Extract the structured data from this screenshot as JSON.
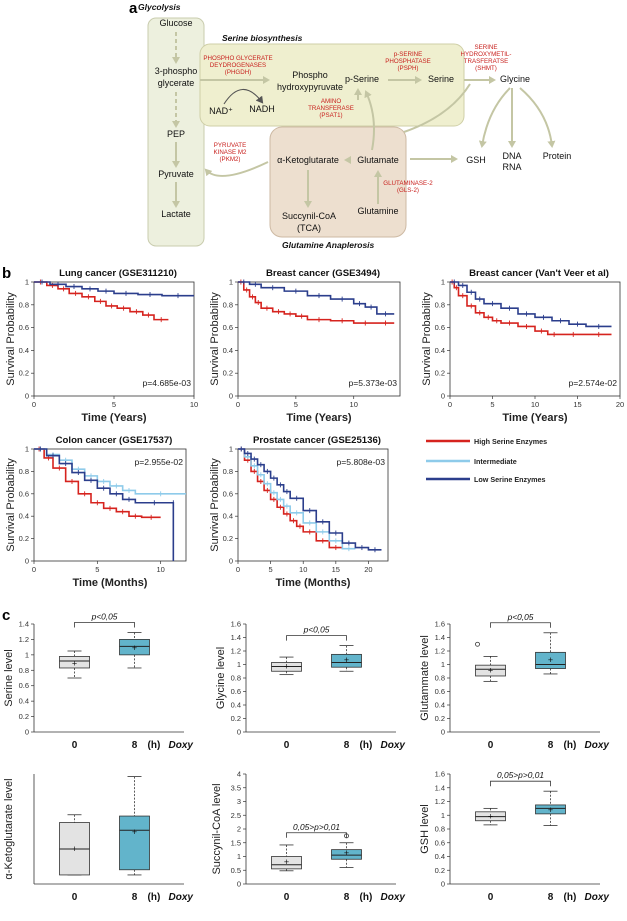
{
  "panel_labels": {
    "a": "a",
    "b": "b",
    "c": "c"
  },
  "colors": {
    "high": "#d6231e",
    "intermediate": "#8ecbea",
    "low": "#2b3e8c",
    "box_control": "#e3e3e3",
    "box_treated": "#62b4cb",
    "glycolysis_fill": "#edf0de",
    "serine_fill": "#efefcf",
    "glutamine_fill": "#eddfcf",
    "arrow": "#c4c6a4",
    "enzyme_text": "#c8201d"
  },
  "pathway": {
    "glycolysis_title": "Glycolysis",
    "serine_title": "Serine biosynthesis",
    "glutamine_title": "Glutamine Anaplerosis",
    "metabolites": {
      "glucose": "Glucose",
      "phosphoglycerate_1": "3-phospho",
      "phosphoglycerate_2": "glycerate",
      "pep": "PEP",
      "pyruvate": "Pyruvate",
      "lactate": "Lactate",
      "phosphohydroxypyruvate_1": "Phospho",
      "phosphohydroxypyruvate_2": "hydroxypyruvate",
      "nad": "NAD⁺",
      "nadh": "NADH",
      "pserine": "p-Serine",
      "serine": "Serine",
      "glycine": "Glycine",
      "gsh": "GSH",
      "dna": "DNA",
      "rna": "RNA",
      "protein": "Protein",
      "akg": "α-Ketoglutarate",
      "glutamate": "Glutamate",
      "glutamine": "Glutamine",
      "succinyl_1": "Succynil-CoA",
      "succinyl_2": "(TCA)"
    },
    "enzymes": {
      "phgdh_1": "PHOSPHO GLYCERATE",
      "phgdh_2": "DEYDROGENASES",
      "phgdh_3": "(PHGDH)",
      "psph_1": "p-SERINE",
      "psph_2": "PHOSPHATASE",
      "psph_3": "(PSPH)",
      "shmt_1": "SERINE",
      "shmt_2": "HYDROXYMETIL-",
      "shmt_3": "TRASFERATSE",
      "shmt_4": "(SHMT)",
      "psat1_1": "AMINO",
      "psat1_2": "TRANSFERASE",
      "psat1_3": "(PSAT1)",
      "pkm2_1": "PYRUVATE",
      "pkm2_2": "KINASE M2",
      "pkm2_3": "(PKM2)",
      "gls2_1": "GLUTAMINASE-2",
      "gls2_2": "(GLS-2)"
    }
  },
  "survival": {
    "legend": [
      "High Serine Enzymes",
      "Intermediate",
      "Low Serine Enzymes"
    ],
    "y_label": "Survival Probability"
  },
  "boxplots": {
    "x_labels": [
      "0",
      "8"
    ],
    "x_unit": "(h)",
    "x_treatment": "Doxy"
  },
  "chart_data": [
    {
      "type": "line",
      "title": "Lung cancer (GSE311210)",
      "xlabel": "Time (Years)",
      "ylabel": "Survival Probability",
      "xlim": [
        0,
        10
      ],
      "ylim": [
        0,
        1
      ],
      "xticks": [
        0,
        5,
        10
      ],
      "yticks": [
        0,
        0.2,
        0.4,
        0.6,
        0.8,
        1
      ],
      "pvalue": "p=4.685e-03",
      "series": [
        {
          "name": "High Serine Enzymes",
          "x": [
            0,
            0.8,
            1.5,
            2.2,
            3.0,
            3.8,
            4.5,
            5.2,
            6.0,
            6.8,
            7.5,
            8.4
          ],
          "y": [
            1.0,
            0.97,
            0.94,
            0.9,
            0.87,
            0.83,
            0.79,
            0.77,
            0.74,
            0.71,
            0.67,
            0.67
          ]
        },
        {
          "name": "Low Serine Enzymes",
          "x": [
            0,
            1.0,
            2.0,
            3.0,
            4.0,
            5.0,
            6.5,
            8.0,
            10.0
          ],
          "y": [
            1.0,
            0.98,
            0.96,
            0.94,
            0.92,
            0.9,
            0.89,
            0.88,
            0.88
          ]
        }
      ]
    },
    {
      "type": "line",
      "title": "Breast cancer (GSE3494)",
      "xlabel": "Time (Years)",
      "ylabel": "Survival Probability",
      "xlim": [
        0,
        14
      ],
      "ylim": [
        0,
        1
      ],
      "xticks": [
        0,
        5,
        10
      ],
      "yticks": [
        0,
        0.2,
        0.4,
        0.6,
        0.8,
        1
      ],
      "pvalue": "p=5.373e-03",
      "series": [
        {
          "name": "High Serine Enzymes",
          "x": [
            0,
            0.5,
            1.0,
            1.5,
            2.0,
            3.0,
            4.0,
            5.0,
            6.0,
            8.0,
            10.0,
            12.0,
            13.5
          ],
          "y": [
            1.0,
            0.93,
            0.87,
            0.82,
            0.77,
            0.74,
            0.72,
            0.7,
            0.67,
            0.66,
            0.64,
            0.64,
            0.64
          ]
        },
        {
          "name": "Low Serine Enzymes",
          "x": [
            0,
            1.0,
            2.0,
            4.0,
            6.0,
            8.0,
            10.0,
            11.0,
            12.0,
            13.5
          ],
          "y": [
            1.0,
            0.98,
            0.95,
            0.92,
            0.88,
            0.85,
            0.81,
            0.78,
            0.72,
            0.72
          ]
        }
      ]
    },
    {
      "type": "line",
      "title": "Breast cancer (Van't Veer et al)",
      "xlabel": "Time (Years)",
      "ylabel": "Survival Probability",
      "xlim": [
        0,
        20
      ],
      "ylim": [
        0,
        1
      ],
      "xticks": [
        0,
        5,
        10,
        15,
        20
      ],
      "yticks": [
        0,
        0.2,
        0.4,
        0.6,
        0.8,
        1
      ],
      "pvalue": "p=2.574e-02",
      "series": [
        {
          "name": "High Serine Enzymes",
          "x": [
            0,
            0.5,
            1.0,
            2.0,
            3.0,
            4.0,
            5.0,
            6.0,
            8.0,
            10.0,
            11.5,
            13.0,
            16.0,
            19.0
          ],
          "y": [
            1.0,
            0.95,
            0.88,
            0.79,
            0.73,
            0.69,
            0.66,
            0.64,
            0.61,
            0.57,
            0.54,
            0.54,
            0.54,
            0.54
          ]
        },
        {
          "name": "Low Serine Enzymes",
          "x": [
            0,
            1.0,
            2.0,
            3.0,
            4.0,
            6.0,
            8.0,
            10.0,
            12.0,
            14.0,
            16.0,
            19.0
          ],
          "y": [
            1.0,
            0.97,
            0.91,
            0.85,
            0.81,
            0.77,
            0.72,
            0.69,
            0.66,
            0.63,
            0.61,
            0.61
          ]
        }
      ]
    },
    {
      "type": "line",
      "title": "Colon cancer (GSE17537)",
      "xlabel": "Time (Months)",
      "ylabel": "Survival Probability",
      "xlim": [
        0,
        12
      ],
      "ylim": [
        0,
        1
      ],
      "xticks": [
        0,
        5,
        10
      ],
      "yticks": [
        0,
        0.2,
        0.4,
        0.6,
        0.8,
        1
      ],
      "pvalue": "p=2.955e-02",
      "series": [
        {
          "name": "High Serine Enzymes",
          "x": [
            0,
            0.8,
            1.5,
            2.5,
            3.5,
            4.5,
            5.5,
            6.5,
            7.5,
            8.5,
            10.0
          ],
          "y": [
            1.0,
            0.92,
            0.83,
            0.71,
            0.6,
            0.52,
            0.47,
            0.44,
            0.4,
            0.39,
            0.39
          ]
        },
        {
          "name": "Intermediate",
          "x": [
            0,
            1.0,
            2.0,
            3.0,
            4.0,
            5.0,
            6.0,
            7.0,
            8.0,
            12.0
          ],
          "y": [
            1.0,
            0.95,
            0.9,
            0.82,
            0.76,
            0.71,
            0.67,
            0.63,
            0.6,
            0.6
          ]
        },
        {
          "name": "Low Serine Enzymes",
          "x": [
            0,
            1.0,
            2.0,
            3.0,
            4.0,
            5.0,
            6.0,
            7.0,
            8.0,
            11.0,
            11.0
          ],
          "y": [
            1.0,
            0.94,
            0.87,
            0.79,
            0.72,
            0.65,
            0.6,
            0.55,
            0.52,
            0.52,
            0.0
          ]
        }
      ]
    },
    {
      "type": "line",
      "title": "Prostate cancer (GSE25136)",
      "xlabel": "Time (Months)",
      "ylabel": "Survival Probability",
      "xlim": [
        0,
        23
      ],
      "ylim": [
        0,
        1
      ],
      "xticks": [
        0,
        5,
        10,
        15,
        20
      ],
      "yticks": [
        0,
        0.2,
        0.4,
        0.6,
        0.8,
        1
      ],
      "pvalue": "p=5.808e-03",
      "series": [
        {
          "name": "High Serine Enzymes",
          "x": [
            0,
            1,
            2,
            3,
            4,
            5,
            6,
            7,
            8,
            9,
            10,
            12,
            14,
            16
          ],
          "y": [
            1.0,
            0.9,
            0.8,
            0.71,
            0.63,
            0.55,
            0.48,
            0.42,
            0.36,
            0.31,
            0.26,
            0.18,
            0.12,
            0.12
          ]
        },
        {
          "name": "Intermediate",
          "x": [
            0,
            1,
            2,
            3,
            4,
            5,
            6,
            7,
            8,
            10,
            12,
            14,
            16,
            18
          ],
          "y": [
            1.0,
            0.93,
            0.85,
            0.77,
            0.69,
            0.61,
            0.55,
            0.49,
            0.43,
            0.34,
            0.26,
            0.18,
            0.11,
            0.11
          ]
        },
        {
          "name": "Low Serine Enzymes",
          "x": [
            0,
            1,
            2,
            3,
            4,
            5,
            6,
            7,
            8,
            10,
            12,
            14,
            16,
            18,
            20,
            22
          ],
          "y": [
            1.0,
            0.96,
            0.91,
            0.86,
            0.8,
            0.74,
            0.68,
            0.62,
            0.56,
            0.45,
            0.35,
            0.25,
            0.16,
            0.12,
            0.1,
            0.1
          ]
        }
      ]
    },
    {
      "type": "box",
      "ylabel": "Serine level",
      "ylim": [
        0,
        1.4
      ],
      "yticks": [
        0,
        0.2,
        0.4,
        0.6,
        0.8,
        1,
        1.2,
        1.4
      ],
      "categories": [
        "0",
        "8"
      ],
      "significance": "p<0,05",
      "boxes": [
        {
          "category": "0",
          "min": 0.7,
          "q1": 0.83,
          "median": 0.92,
          "q3": 0.98,
          "max": 1.05,
          "mean": 0.89
        },
        {
          "category": "8",
          "min": 0.83,
          "q1": 1.0,
          "median": 1.11,
          "q3": 1.2,
          "max": 1.29,
          "mean": 1.09
        }
      ]
    },
    {
      "type": "box",
      "ylabel": "Glycine level",
      "ylim": [
        0,
        1.6
      ],
      "yticks": [
        0,
        0.2,
        0.4,
        0.6,
        0.8,
        1,
        1.2,
        1.4,
        1.6
      ],
      "categories": [
        "0",
        "8"
      ],
      "significance": "p<0,05",
      "boxes": [
        {
          "category": "0",
          "min": 0.85,
          "q1": 0.9,
          "median": 0.97,
          "q3": 1.03,
          "max": 1.11,
          "mean": 0.97
        },
        {
          "category": "8",
          "min": 0.9,
          "q1": 0.96,
          "median": 1.03,
          "q3": 1.15,
          "max": 1.28,
          "mean": 1.07
        }
      ]
    },
    {
      "type": "box",
      "ylabel": "Glutammate level",
      "ylim": [
        0,
        1.6
      ],
      "yticks": [
        0,
        0.2,
        0.4,
        0.6,
        0.8,
        1,
        1.2,
        1.4,
        1.6
      ],
      "categories": [
        "0",
        "8"
      ],
      "significance": "p<0,05",
      "boxes": [
        {
          "category": "0",
          "min": 0.75,
          "q1": 0.83,
          "median": 0.93,
          "q3": 0.99,
          "max": 1.12,
          "mean": 0.91,
          "outliers": [
            1.3
          ]
        },
        {
          "category": "8",
          "min": 0.86,
          "q1": 0.94,
          "median": 1.0,
          "q3": 1.18,
          "max": 1.47,
          "mean": 1.07
        }
      ]
    },
    {
      "type": "box",
      "ylabel": "α-Ketoglutarate level",
      "ylim": [
        0.2,
        1.9
      ],
      "yticks": [],
      "categories": [
        "0",
        "8"
      ],
      "significance": "",
      "boxes": [
        {
          "category": "0",
          "min": 0.34,
          "q1": 0.34,
          "median": 0.74,
          "q3": 1.15,
          "max": 1.27,
          "mean": 0.74
        },
        {
          "category": "8",
          "min": 0.34,
          "q1": 0.42,
          "median": 1.03,
          "q3": 1.25,
          "max": 1.86,
          "mean": 1.0
        }
      ]
    },
    {
      "type": "box",
      "ylabel": "Succynil-CoA level",
      "ylim": [
        0,
        4
      ],
      "yticks": [
        0,
        0.5,
        1,
        1.5,
        2,
        2.5,
        3,
        3.5,
        4
      ],
      "categories": [
        "0",
        "8"
      ],
      "significance": "0,05>p>0,01",
      "boxes": [
        {
          "category": "0",
          "min": 0.48,
          "q1": 0.55,
          "median": 0.7,
          "q3": 1.0,
          "max": 1.42,
          "mean": 0.8
        },
        {
          "category": "8",
          "min": 0.6,
          "q1": 0.9,
          "median": 1.05,
          "q3": 1.25,
          "max": 1.5,
          "mean": 1.12,
          "outliers": [
            1.75
          ]
        }
      ]
    },
    {
      "type": "box",
      "ylabel": "GSH level",
      "ylim": [
        0,
        1.6
      ],
      "yticks": [
        0,
        0.2,
        0.4,
        0.6,
        0.8,
        1,
        1.2,
        1.4,
        1.6
      ],
      "categories": [
        "0",
        "8"
      ],
      "significance": "0,05>p>0,01",
      "boxes": [
        {
          "category": "0",
          "min": 0.86,
          "q1": 0.92,
          "median": 0.98,
          "q3": 1.05,
          "max": 1.1,
          "mean": 0.98
        },
        {
          "category": "8",
          "min": 0.85,
          "q1": 1.02,
          "median": 1.1,
          "q3": 1.15,
          "max": 1.35,
          "mean": 1.08
        }
      ]
    }
  ]
}
